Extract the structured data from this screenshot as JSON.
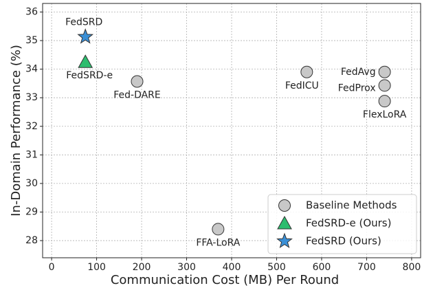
{
  "chart_data": {
    "type": "scatter",
    "xlabel": "Communication Cost (MB) Per Round",
    "ylabel": "In-Domain Performance (%)",
    "xlim": [
      -20,
      820
    ],
    "ylim": [
      27.4,
      36.3
    ],
    "xticks": [
      0,
      100,
      200,
      300,
      400,
      500,
      600,
      700,
      800
    ],
    "yticks": [
      28,
      29,
      30,
      31,
      32,
      33,
      34,
      35,
      36
    ],
    "grid": true,
    "legend": "lower right",
    "series": [
      {
        "name": "Baseline Methods",
        "marker": "circle",
        "color": "#c8c8c8",
        "x": [
          190,
          567,
          740,
          740,
          740,
          370
        ],
        "values": [
          33.57,
          33.9,
          33.9,
          33.43,
          32.88,
          28.4
        ],
        "labels": [
          "Fed-DARE",
          "FedICU",
          "FedAvg",
          "FedProx",
          "FlexLoRA",
          "FFA-LoRA"
        ]
      },
      {
        "name": "FedSRD-e (Ours)",
        "marker": "triangle",
        "color": "#2dbd6e",
        "x": [
          75
        ],
        "values": [
          34.25
        ],
        "labels": [
          "FedSRD-e"
        ]
      },
      {
        "name": "FedSRD (Ours)",
        "marker": "star",
        "color": "#3a8fd6",
        "x": [
          75
        ],
        "values": [
          35.13
        ],
        "labels": [
          "FedSRD"
        ]
      }
    ]
  }
}
